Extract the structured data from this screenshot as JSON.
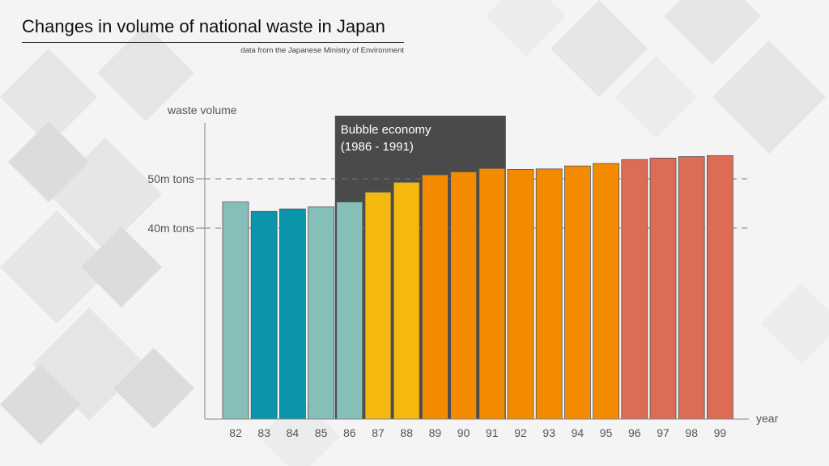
{
  "header": {
    "title": "Changes in volume of national waste in Japan",
    "subtitle": "data from the Japanese Ministry of Environment"
  },
  "chart_data": {
    "type": "bar",
    "ylabel": "waste volume",
    "xlabel": "year",
    "categories": [
      "82",
      "83",
      "84",
      "85",
      "86",
      "87",
      "88",
      "89",
      "90",
      "91",
      "92",
      "93",
      "94",
      "95",
      "96",
      "97",
      "98",
      "99"
    ],
    "values": [
      45.3,
      43.4,
      43.9,
      44.3,
      45.3,
      47.3,
      49.3,
      50.8,
      51.4,
      52.1,
      51.9,
      52.0,
      52.6,
      53.1,
      53.9,
      54.2,
      54.5,
      54.7
    ],
    "bar_colors": [
      "#86beb8",
      "#0a95ab",
      "#0a95ab",
      "#86beb8",
      "#86beb8",
      "#f5b80f",
      "#f5b80f",
      "#f38a00",
      "#f38a00",
      "#f38a00",
      "#f38a00",
      "#f38a00",
      "#f38a00",
      "#f38a00",
      "#dd6c57",
      "#dd6c57",
      "#dd6c57",
      "#dd6c57"
    ],
    "reference_lines": [
      {
        "value": 50,
        "label": "50m tons"
      },
      {
        "value": 40,
        "label": "40m tons"
      }
    ],
    "annotation": {
      "line1": "Bubble economy",
      "line2": "(1986 - 1991)",
      "from": "86",
      "to": "91",
      "color": "#4a4a4a"
    }
  }
}
